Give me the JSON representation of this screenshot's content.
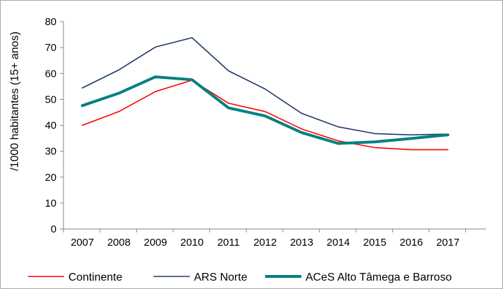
{
  "chart_data": {
    "type": "line",
    "title": "",
    "xlabel": "",
    "ylabel": "/1000 habitantes (15+ anos)",
    "ylim": [
      0,
      80
    ],
    "yticks": [
      0,
      10,
      20,
      30,
      40,
      50,
      60,
      70,
      80
    ],
    "categories": [
      "2007",
      "2008",
      "2009",
      "2010",
      "2011",
      "2012",
      "2013",
      "2014",
      "2015",
      "2016",
      "2017"
    ],
    "grid": false,
    "legend_position": "bottom",
    "series": [
      {
        "name": "Continente",
        "color": "#ff0000",
        "width": 1.6,
        "values": [
          40.0,
          45.3,
          53.0,
          57.4,
          48.5,
          45.3,
          38.6,
          34.0,
          31.4,
          30.6,
          30.6
        ]
      },
      {
        "name": "ARS Norte",
        "color": "#1f3864",
        "width": 1.6,
        "values": [
          54.4,
          61.4,
          70.2,
          73.8,
          61.0,
          54.0,
          44.6,
          39.4,
          36.8,
          36.3,
          36.6
        ]
      },
      {
        "name": "ACeS Alto Tâmega e Barroso",
        "color": "#008080",
        "width": 4,
        "values": [
          47.6,
          52.4,
          58.7,
          57.6,
          46.7,
          43.6,
          37.2,
          33.0,
          33.6,
          34.9,
          36.3
        ]
      }
    ]
  }
}
